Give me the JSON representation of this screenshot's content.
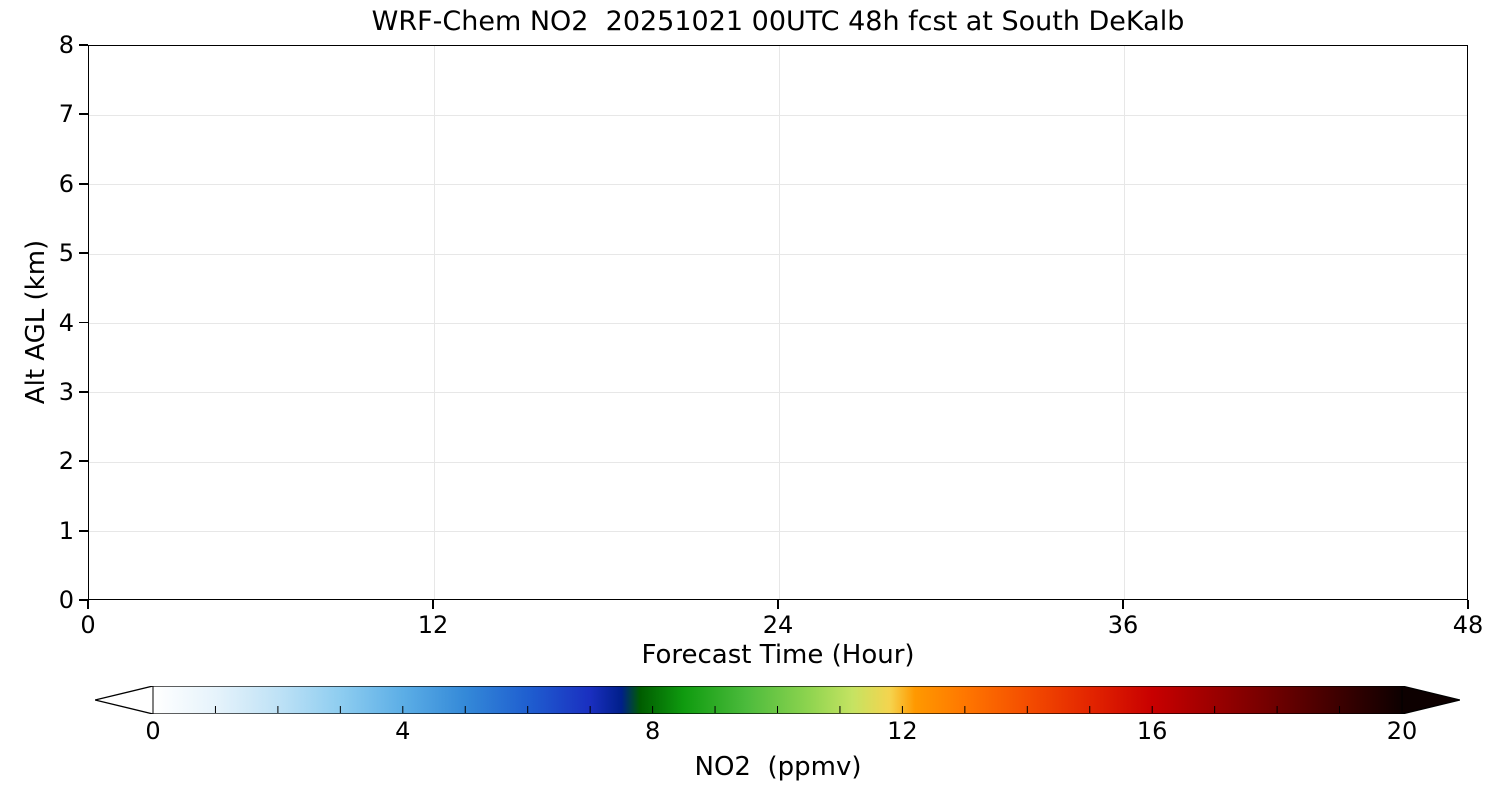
{
  "chart_data": {
    "type": "heatmap",
    "title": "WRF-Chem NO2  20251021 00UTC 48h fcst at South DeKalb",
    "xlabel": "Forecast Time (Hour)",
    "ylabel": "Alt AGL (km)",
    "xlim": [
      0,
      48
    ],
    "ylim": [
      0,
      8
    ],
    "x_ticks": [
      0,
      12,
      24,
      36,
      48
    ],
    "y_ticks": [
      0,
      1,
      2,
      3,
      4,
      5,
      6,
      7,
      8
    ],
    "grid": true,
    "series": [],
    "data_note": "plot area is blank/white — no NO2 concentrations above the colormap minimum are rendered for the 0-48h forecast window",
    "colorbar": {
      "label": "NO2  (ppmv)",
      "ticks": [
        0,
        4,
        8,
        12,
        16,
        20
      ],
      "range": [
        0,
        20
      ],
      "extend": "both",
      "minor_tick_step": 1,
      "stops": [
        {
          "value": 0,
          "color": "#ffffff"
        },
        {
          "value": 1,
          "color": "#e6f3fb"
        },
        {
          "value": 2,
          "color": "#bfe2f6"
        },
        {
          "value": 3,
          "color": "#8ecdf0"
        },
        {
          "value": 4,
          "color": "#5caee6"
        },
        {
          "value": 5,
          "color": "#3489d8"
        },
        {
          "value": 6,
          "color": "#1f5fd0"
        },
        {
          "value": 7,
          "color": "#1a2fc0"
        },
        {
          "value": 7.5,
          "color": "#001f8a"
        },
        {
          "value": 7.8,
          "color": "#005c00"
        },
        {
          "value": 8.5,
          "color": "#0f9b0f"
        },
        {
          "value": 9.5,
          "color": "#4cbb3c"
        },
        {
          "value": 10.5,
          "color": "#8ed44f"
        },
        {
          "value": 11.2,
          "color": "#c5e362"
        },
        {
          "value": 11.8,
          "color": "#f5d44e"
        },
        {
          "value": 12.2,
          "color": "#ff9900"
        },
        {
          "value": 13,
          "color": "#ff7700"
        },
        {
          "value": 14,
          "color": "#f44d00"
        },
        {
          "value": 15,
          "color": "#e32500"
        },
        {
          "value": 16,
          "color": "#c80000"
        },
        {
          "value": 17,
          "color": "#9b0000"
        },
        {
          "value": 18,
          "color": "#6d0000"
        },
        {
          "value": 19,
          "color": "#3c0000"
        },
        {
          "value": 20,
          "color": "#0d0000"
        }
      ]
    }
  }
}
